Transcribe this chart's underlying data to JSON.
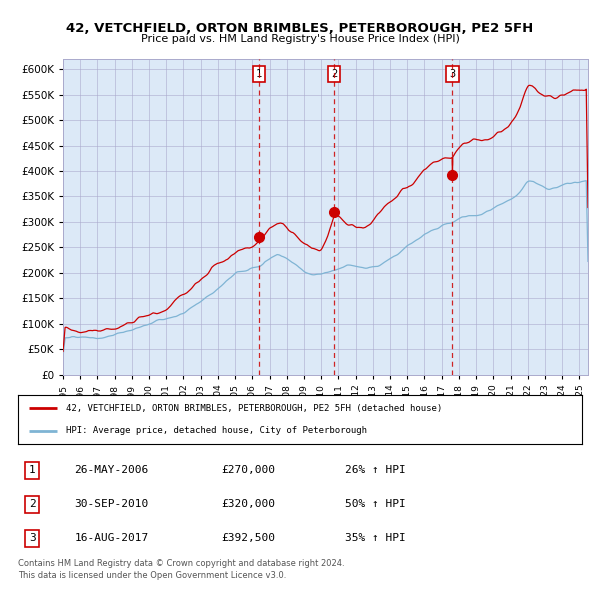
{
  "title": "42, VETCHFIELD, ORTON BRIMBLES, PETERBOROUGH, PE2 5FH",
  "subtitle": "Price paid vs. HM Land Registry's House Price Index (HPI)",
  "bg_color": "#dce9f7",
  "grid_color": "#aaaacc",
  "sale1": {
    "date_num": 2006.38,
    "price": 270000,
    "label": "1"
  },
  "sale2": {
    "date_num": 2010.75,
    "price": 320000,
    "label": "2"
  },
  "sale3": {
    "date_num": 2017.62,
    "price": 392500,
    "label": "3"
  },
  "legend_line1": "42, VETCHFIELD, ORTON BRIMBLES, PETERBOROUGH, PE2 5FH (detached house)",
  "legend_line2": "HPI: Average price, detached house, City of Peterborough",
  "table": [
    {
      "num": "1",
      "date": "26-MAY-2006",
      "price": "£270,000",
      "pct": "26% ↑ HPI"
    },
    {
      "num": "2",
      "date": "30-SEP-2010",
      "price": "£320,000",
      "pct": "50% ↑ HPI"
    },
    {
      "num": "3",
      "date": "16-AUG-2017",
      "price": "£392,500",
      "pct": "35% ↑ HPI"
    }
  ],
  "footer1": "Contains HM Land Registry data © Crown copyright and database right 2024.",
  "footer2": "This data is licensed under the Open Government Licence v3.0.",
  "ylim": [
    0,
    620000
  ],
  "xlim_start": 1995.0,
  "xlim_end": 2025.5,
  "red_line_color": "#cc0000",
  "blue_line_color": "#7fb4d4",
  "sale_dot_color": "#cc0000",
  "dashed_vline_color": "#cc0000",
  "red_anchors_x": [
    1995.0,
    1996.0,
    1997.0,
    1998.0,
    1999.0,
    2000.0,
    2001.0,
    2002.0,
    2003.0,
    2004.0,
    2005.0,
    2006.0,
    2006.38,
    2007.0,
    2007.5,
    2008.0,
    2008.5,
    2009.0,
    2009.5,
    2010.0,
    2010.75,
    2011.0,
    2011.5,
    2012.0,
    2012.5,
    2013.0,
    2013.5,
    2014.0,
    2014.5,
    2015.0,
    2015.5,
    2016.0,
    2016.5,
    2017.0,
    2017.62,
    2018.0,
    2018.5,
    2019.0,
    2019.5,
    2020.0,
    2020.5,
    2021.0,
    2021.5,
    2022.0,
    2022.3,
    2022.6,
    2023.0,
    2023.3,
    2023.6,
    2024.0,
    2024.5,
    2025.0,
    2025.5
  ],
  "red_anchors_y": [
    90000,
    92000,
    96000,
    100000,
    108000,
    118000,
    130000,
    155000,
    180000,
    210000,
    235000,
    258000,
    270000,
    295000,
    302000,
    290000,
    278000,
    263000,
    255000,
    252000,
    320000,
    318000,
    300000,
    292000,
    288000,
    295000,
    305000,
    320000,
    335000,
    350000,
    360000,
    375000,
    385000,
    395000,
    392500,
    405000,
    415000,
    418000,
    420000,
    425000,
    435000,
    448000,
    475000,
    525000,
    520000,
    515000,
    510000,
    505000,
    498000,
    500000,
    502000,
    500000,
    500000
  ],
  "blue_anchors_x": [
    1995.0,
    1996.0,
    1997.0,
    1998.0,
    1999.0,
    2000.0,
    2001.0,
    2002.0,
    2003.0,
    2004.0,
    2005.0,
    2006.0,
    2006.5,
    2007.0,
    2007.5,
    2008.0,
    2008.5,
    2009.0,
    2009.5,
    2010.0,
    2010.5,
    2011.0,
    2011.5,
    2012.0,
    2012.5,
    2013.0,
    2013.5,
    2014.0,
    2014.5,
    2015.0,
    2015.5,
    2016.0,
    2016.5,
    2017.0,
    2017.5,
    2018.0,
    2018.5,
    2019.0,
    2019.5,
    2020.0,
    2020.5,
    2021.0,
    2021.5,
    2022.0,
    2022.5,
    2023.0,
    2023.5,
    2024.0,
    2024.5,
    2025.0,
    2025.5
  ],
  "blue_anchors_y": [
    72000,
    74000,
    76000,
    79000,
    84000,
    92000,
    103000,
    118000,
    140000,
    165000,
    192000,
    205000,
    210000,
    225000,
    235000,
    225000,
    215000,
    200000,
    193000,
    195000,
    200000,
    208000,
    210000,
    205000,
    202000,
    207000,
    215000,
    225000,
    235000,
    248000,
    258000,
    268000,
    278000,
    285000,
    292000,
    298000,
    302000,
    305000,
    308000,
    312000,
    318000,
    328000,
    345000,
    368000,
    362000,
    355000,
    358000,
    362000,
    365000,
    368000,
    370000
  ]
}
